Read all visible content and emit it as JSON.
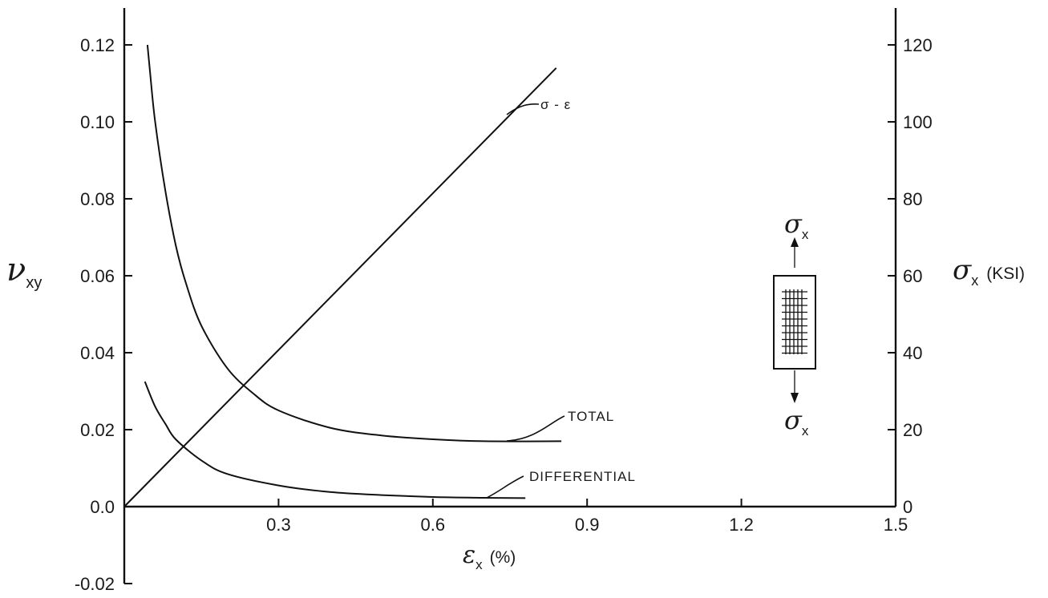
{
  "chart_data": {
    "type": "line",
    "x_axis": {
      "label_symbol": "ε",
      "label_sub": "x",
      "label_unit": "(%)",
      "range": [
        0,
        1.5
      ],
      "ticks": [
        0.3,
        0.6,
        0.9,
        1.2,
        1.5
      ],
      "tick_labels": [
        "0.3",
        "0.6",
        "0.9",
        "1.2",
        "1.5"
      ]
    },
    "y_left_axis": {
      "label_symbol": "ν",
      "label_sub": "xy",
      "range": [
        -0.02,
        0.12
      ],
      "ticks": [
        -0.02,
        0.0,
        0.02,
        0.04,
        0.06,
        0.08,
        0.1,
        0.12
      ],
      "tick_labels": [
        "-0.02",
        "0.0",
        "0.02",
        "0.04",
        "0.06",
        "0.08",
        "0.10",
        "0.12"
      ]
    },
    "y_right_axis": {
      "label_symbol": "σ",
      "label_sub": "x",
      "label_unit": "(KSI)",
      "range": [
        0,
        120
      ],
      "ticks": [
        0,
        20,
        40,
        60,
        80,
        100,
        120
      ],
      "tick_labels": [
        "0",
        "20",
        "40",
        "60",
        "80",
        "100",
        "120"
      ]
    },
    "series": [
      {
        "name": "TOTAL",
        "axis": "left",
        "points": [
          [
            0.045,
            0.12
          ],
          [
            0.05,
            0.113
          ],
          [
            0.06,
            0.1
          ],
          [
            0.08,
            0.082
          ],
          [
            0.1,
            0.068
          ],
          [
            0.12,
            0.058
          ],
          [
            0.15,
            0.047
          ],
          [
            0.2,
            0.036
          ],
          [
            0.25,
            0.0295
          ],
          [
            0.3,
            0.025
          ],
          [
            0.4,
            0.0205
          ],
          [
            0.5,
            0.0185
          ],
          [
            0.6,
            0.0175
          ],
          [
            0.7,
            0.017
          ],
          [
            0.85,
            0.017
          ]
        ]
      },
      {
        "name": "DIFFERENTIAL",
        "axis": "left",
        "points": [
          [
            0.04,
            0.0325
          ],
          [
            0.06,
            0.026
          ],
          [
            0.08,
            0.0215
          ],
          [
            0.1,
            0.0175
          ],
          [
            0.15,
            0.012
          ],
          [
            0.2,
            0.0085
          ],
          [
            0.3,
            0.0055
          ],
          [
            0.4,
            0.0038
          ],
          [
            0.5,
            0.003
          ],
          [
            0.6,
            0.0025
          ],
          [
            0.7,
            0.0023
          ],
          [
            0.78,
            0.0022
          ]
        ]
      },
      {
        "name": "σ - ε",
        "axis": "right",
        "points": [
          [
            0.0,
            0.0
          ],
          [
            0.84,
            114
          ]
        ]
      }
    ],
    "annotations": {
      "total": "TOTAL",
      "differential": "DIFFERENTIAL",
      "sigma_epsilon": "σ - ε"
    },
    "inset": {
      "top_symbol": "σ",
      "top_sub": "x",
      "bottom_symbol": "σ",
      "bottom_sub": "x"
    },
    "grid": false,
    "legend": "none"
  }
}
